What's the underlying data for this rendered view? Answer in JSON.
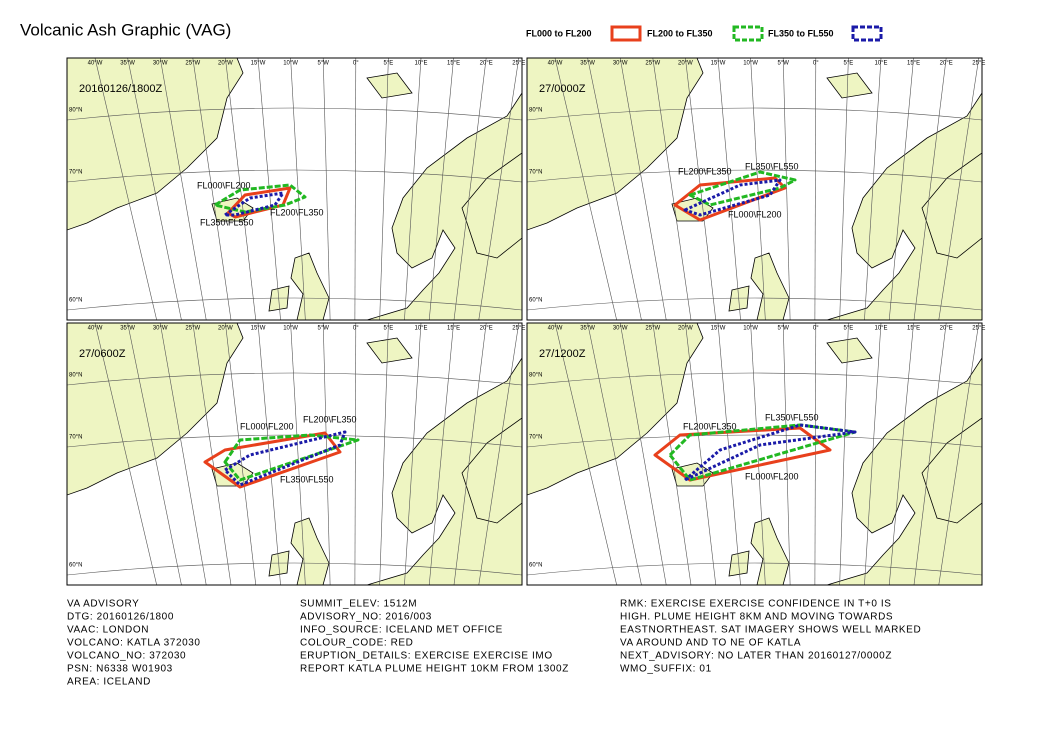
{
  "header": {
    "title": "Volcanic Ash Graphic (VAG)"
  },
  "legend": [
    {
      "label": "FL000 to FL200",
      "color": "#e8401c"
    },
    {
      "label": "FL200 to FL350",
      "color": "#22b822"
    },
    {
      "label": "FL350 to FL550",
      "color": "#1a1aa8"
    }
  ],
  "axes": {
    "lon_labels": [
      "40°W",
      "35°W",
      "30°W",
      "25°W",
      "20°W",
      "15°W",
      "10°W",
      "5°W",
      "0°",
      "5°E",
      "10°E",
      "15°E",
      "20°E",
      "25°E"
    ],
    "lat_labels": [
      "80°N",
      "70°N",
      "60°N"
    ]
  },
  "panels": [
    {
      "time": "20160126/1800Z",
      "labels": [
        "FL000\\FL200",
        "FL200\\FL350",
        "FL350\\FL550"
      ]
    },
    {
      "time": "27/0000Z",
      "labels": [
        "FL200\\FL350",
        "FL350\\FL550",
        "FL000\\FL200"
      ]
    },
    {
      "time": "27/0600Z",
      "labels": [
        "FL000\\FL200",
        "FL200\\FL350",
        "FL350\\FL550"
      ]
    },
    {
      "time": "27/1200Z",
      "labels": [
        "FL200\\FL350",
        "FL350\\FL550",
        "FL000\\FL200"
      ]
    }
  ],
  "advisory": {
    "columns": [
      [
        "VA ADVISORY",
        "DTG: 20160126/1800",
        "VAAC: LONDON",
        "VOLCANO: KATLA 372030",
        "VOLCANO_NO: 372030",
        "PSN: N6338 W01903",
        "AREA: ICELAND"
      ],
      [
        "SUMMIT_ELEV: 1512M",
        "ADVISORY_NO: 2016/003",
        "INFO_SOURCE: ICELAND MET OFFICE",
        "COLOUR_CODE: RED",
        "ERUPTION_DETAILS: EXERCISE EXERCISE IMO",
        "REPORT KATLA PLUME HEIGHT 10KM FROM 1300Z"
      ],
      [
        "RMK: EXERCISE EXERCISE CONFIDENCE IN T+0 IS",
        "HIGH. PLUME HEIGHT 8KM  AND MOVING TOWARDS",
        "EASTNORTHEAST. SAT IMAGERY SHOWS WELL MARKED",
        "VA AROUND AND TO NE  OF KATLA",
        "NEXT_ADVISORY: NO LATER THAN 20160127/0000Z",
        "WMO_SUFFIX: 01"
      ]
    ]
  }
}
